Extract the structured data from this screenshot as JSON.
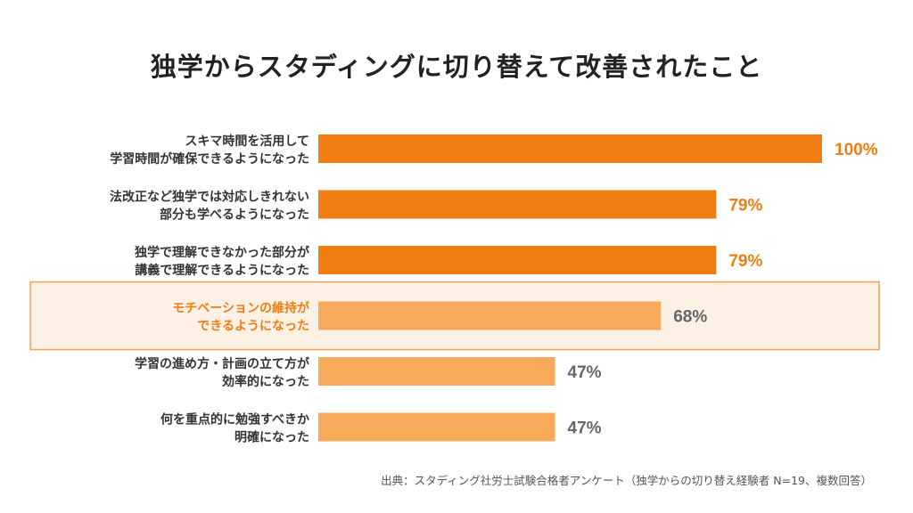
{
  "title": "独学からスタディングに切り替えて改善されたこと",
  "source": "出典：スタディング社労士試験合格者アンケート（独学からの切り替え経験者 N=19、複数回答）",
  "colors": {
    "bar_strong": "#f07d12",
    "bar_light": "#f7aa5a",
    "label_dark": "#333333",
    "label_orange": "#f07d12",
    "value_orange": "#f07d12",
    "value_gray": "#666666",
    "highlight_fill": "#fdf1e6",
    "highlight_border": "#f4a04e"
  },
  "chart_data": {
    "type": "bar",
    "orientation": "horizontal",
    "categories": [
      [
        "スキマ時間を活用して",
        "学習時間が確保できるようになった"
      ],
      [
        "法改正など独学では対応しきれない",
        "部分も学べるようになった"
      ],
      [
        "独学で理解できなかった部分が",
        "講義で理解できるようになった"
      ],
      [
        "モチベーションの維持が",
        "できるようになった"
      ],
      [
        "学習の進め方・計画の立て方が",
        "効率的になった"
      ],
      [
        "何を重点的に勉強すべきか",
        "明確になった"
      ]
    ],
    "values": [
      100,
      79,
      79,
      68,
      47,
      47
    ],
    "value_labels": [
      "100%",
      "79%",
      "79%",
      "68%",
      "47%",
      "47%"
    ],
    "unit": "%",
    "xlim": [
      0,
      100
    ],
    "highlighted_index": 3,
    "strong_bars": [
      0,
      1,
      2
    ],
    "grid": false,
    "legend": "none"
  }
}
